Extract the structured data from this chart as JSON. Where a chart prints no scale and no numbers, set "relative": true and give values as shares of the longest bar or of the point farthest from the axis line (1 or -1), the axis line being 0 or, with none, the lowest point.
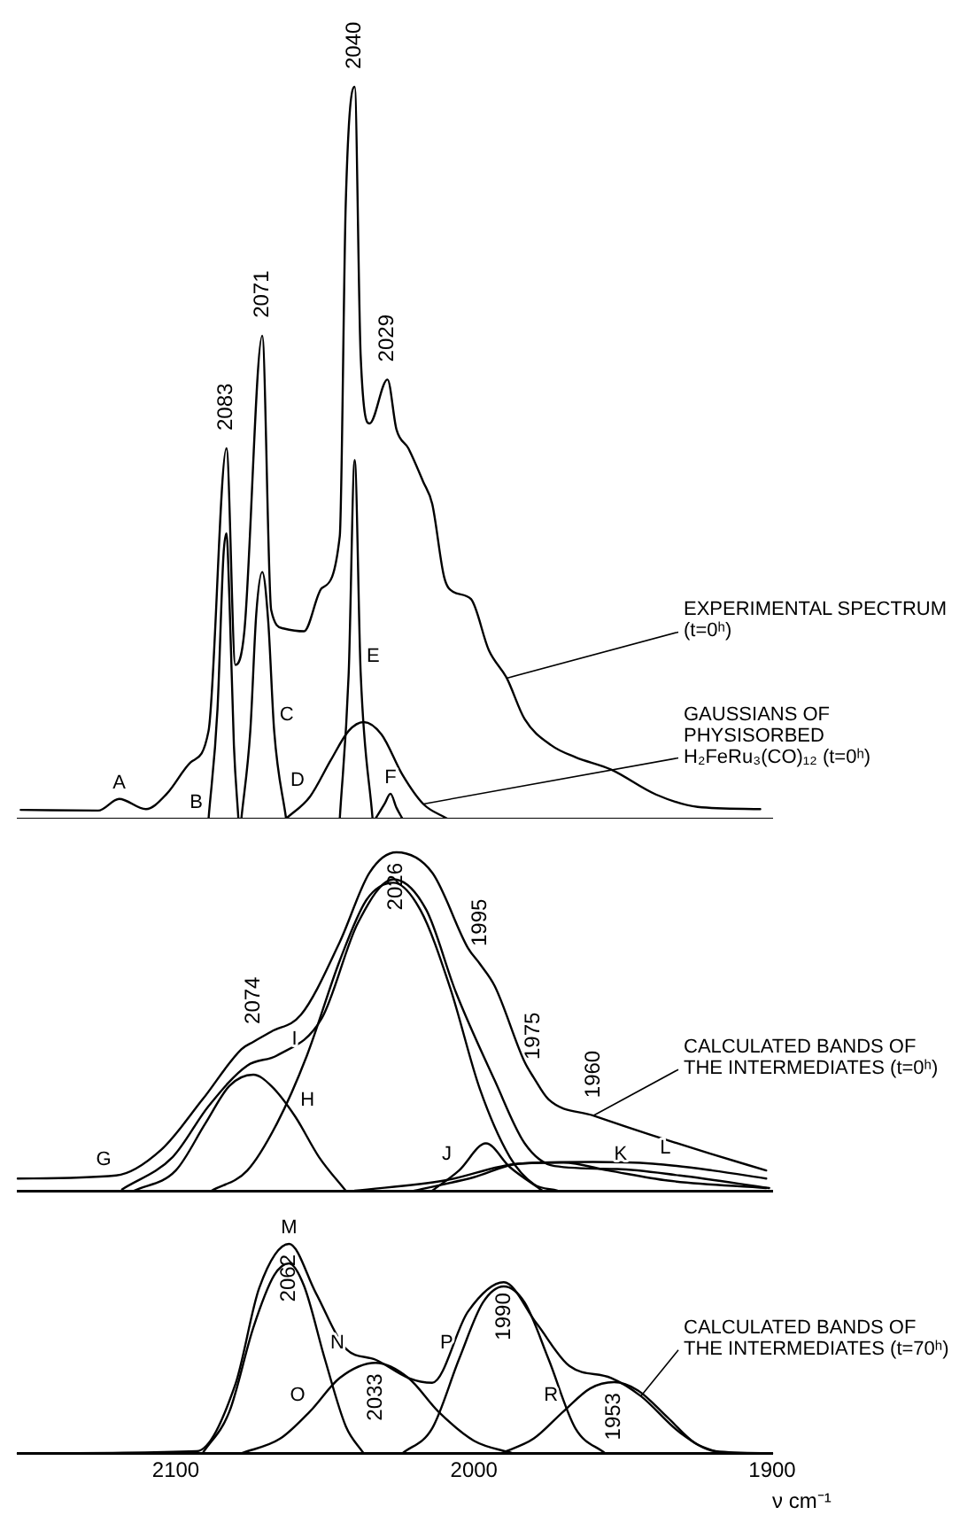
{
  "chart_data": [
    {
      "type": "line",
      "relative": true,
      "xlim": [
        2153,
        1900
      ],
      "tick_labels": false,
      "series": [
        {
          "color": "#000000",
          "x": [
            2152,
            2126,
            2119,
            2110,
            2103,
            2095,
            2089,
            2083,
            2080,
            2077,
            2071,
            2068,
            2064,
            2057,
            2051,
            2045,
            2043,
            2040,
            2038,
            2035,
            2029,
            2026,
            2022,
            2017,
            2014,
            2010,
            2007,
            2001,
            1995,
            1989,
            1983,
            1974,
            1966,
            1954,
            1939,
            1925,
            1904
          ],
          "values": [
            0.012,
            0.011,
            0.027,
            0.013,
            0.034,
            0.077,
            0.12,
            0.506,
            0.21,
            0.256,
            0.66,
            0.285,
            0.26,
            0.256,
            0.315,
            0.386,
            0.84,
            1,
            0.633,
            0.54,
            0.6,
            0.532,
            0.506,
            0.46,
            0.43,
            0.33,
            0.31,
            0.3,
            0.23,
            0.192,
            0.136,
            0.1,
            0.084,
            0.067,
            0.033,
            0.016,
            0.013
          ]
        },
        {
          "color": "#000000",
          "x": [
            2089,
            2086,
            2084,
            2083,
            2082,
            2080.5,
            2079
          ],
          "values": [
            0,
            0.15,
            0.36,
            0.39,
            0.3,
            0.1,
            0
          ]
        },
        {
          "color": "#000000",
          "x": [
            2078,
            2075,
            2073,
            2071,
            2069,
            2067,
            2063
          ],
          "values": [
            0,
            0.12,
            0.28,
            0.337,
            0.27,
            0.12,
            0
          ]
        },
        {
          "color": "#000000",
          "x": [
            2045,
            2042,
            2040,
            2038,
            2034
          ],
          "values": [
            0,
            0.2,
            0.49,
            0.2,
            0
          ]
        },
        {
          "color": "#000000",
          "x": [
            2063,
            2055,
            2048,
            2042,
            2037,
            2031,
            2024,
            2017,
            2009
          ],
          "values": [
            0,
            0.03,
            0.08,
            0.12,
            0.132,
            0.115,
            0.06,
            0.02,
            0
          ]
        },
        {
          "color": "#000000",
          "x": [
            2033,
            2030,
            2028,
            2026,
            2024
          ],
          "values": [
            0,
            0.02,
            0.034,
            0.015,
            0
          ]
        }
      ],
      "annotations": [
        {
          "text": "2083",
          "x": 2083,
          "y": 0.506
        },
        {
          "text": "2071",
          "x": 2071,
          "y": 0.66
        },
        {
          "text": "2040",
          "x": 2040,
          "y": 1
        },
        {
          "text": "2029",
          "x": 2029,
          "y": 0.6
        },
        {
          "text": "A",
          "x": 2119,
          "y": 0.027
        },
        {
          "text": "B",
          "x": 2089,
          "y": 0
        },
        {
          "text": "C",
          "x": 2067,
          "y": 0.12
        },
        {
          "text": "D",
          "x": 2055,
          "y": 0.03
        },
        {
          "text": "E",
          "x": 2038,
          "y": 0.2
        },
        {
          "text": "F",
          "x": 2028,
          "y": 0.034
        },
        {
          "text": "EXPERIMENTAL SPECTRUM (t=0ʰ)",
          "x": 1989,
          "y": 0.192
        },
        {
          "text": "GAUSSIANS OF PHYSISORBED H₂FeRu₃(CO)₁₂ (t=0ʰ)",
          "x": 2017,
          "y": 0.02
        }
      ]
    },
    {
      "type": "line",
      "relative": true,
      "xlim": [
        2153,
        1900
      ],
      "tick_labels": false,
      "series": [
        {
          "color": "#000000",
          "x": [
            2153,
            2120,
            2105,
            2091,
            2078,
            2074,
            2068,
            2058,
            2045,
            2035,
            2026,
            2014,
            2002,
            1998,
            1993,
            1983,
            1980,
            1975,
            1960,
            1941,
            1921,
            1902
          ],
          "values": [
            0.036,
            0.045,
            0.12,
            0.27,
            0.418,
            0.44,
            0.47,
            0.52,
            0.735,
            0.94,
            1,
            0.94,
            0.717,
            0.67,
            0.604,
            0.38,
            0.335,
            0.27,
            0.222,
            0.166,
            0.11,
            0.06
          ]
        },
        {
          "color": "#000000",
          "x": [
            2118,
            2101,
            2089,
            2076,
            2066,
            2051,
            2039,
            2027,
            2016,
            2006,
            1993,
            1983,
            1973,
            1952,
            1931,
            1901
          ],
          "values": [
            0.004,
            0.1,
            0.25,
            0.37,
            0.4,
            0.51,
            0.79,
            0.92,
            0.83,
            0.585,
            0.325,
            0.14,
            0.073,
            0.064,
            0.045,
            0.008
          ]
        },
        {
          "color": "#000000",
          "x": [
            2114,
            2100,
            2090,
            2082,
            2074,
            2068,
            2060,
            2052,
            2043
          ],
          "values": [
            0,
            0.06,
            0.2,
            0.31,
            0.343,
            0.31,
            0.22,
            0.1,
            0
          ]
        },
        {
          "color": "#000000",
          "x": [
            2088,
            2076,
            2066,
            2056,
            2045,
            2036,
            2027,
            2018,
            2008,
            1998,
            1988,
            1980,
            1972
          ],
          "values": [
            0,
            0.06,
            0.2,
            0.4,
            0.68,
            0.86,
            0.91,
            0.83,
            0.6,
            0.3,
            0.1,
            0.02,
            0
          ]
        },
        {
          "color": "#000000",
          "x": [
            2014,
            2005,
            1996,
            1988,
            1977
          ],
          "values": [
            0,
            0.06,
            0.14,
            0.07,
            0
          ]
        },
        {
          "color": "#000000",
          "x": [
            2040,
            2010,
            1985,
            1970,
            1955,
            1935,
            1902
          ],
          "values": [
            0,
            0.03,
            0.08,
            0.083,
            0.06,
            0.03,
            0.008
          ]
        },
        {
          "color": "#000000",
          "x": [
            2020,
            2000,
            1985,
            1960,
            1940,
            1920,
            1902
          ],
          "values": [
            0,
            0.04,
            0.08,
            0.085,
            0.08,
            0.06,
            0.036
          ]
        }
      ],
      "annotations": [
        {
          "text": "2074",
          "x": 2074,
          "y": 0.44
        },
        {
          "text": "2026",
          "x": 2026,
          "y": 1
        },
        {
          "text": "1995",
          "x": 1998,
          "y": 0.67
        },
        {
          "text": "1975",
          "x": 1980,
          "y": 0.335
        },
        {
          "text": "1960",
          "x": 1960,
          "y": 0.222
        },
        {
          "text": "G",
          "x": 2120,
          "y": 0.045
        },
        {
          "text": "H",
          "x": 2060,
          "y": 0.22
        },
        {
          "text": "I",
          "x": 2056,
          "y": 0.4
        },
        {
          "text": "J",
          "x": 2005,
          "y": 0.06
        },
        {
          "text": "K",
          "x": 1955,
          "y": 0.06
        },
        {
          "text": "L",
          "x": 1940,
          "y": 0.08
        },
        {
          "text": "CALCULATED BANDS OF THE INTERMEDIATES (t=0ʰ)",
          "x": 1960,
          "y": 0.222
        }
      ]
    },
    {
      "type": "line",
      "relative": true,
      "xlim": [
        2153,
        1900
      ],
      "xticks": [
        2100,
        2000,
        1900
      ],
      "tick_labels": "x",
      "xlabel": "ν cm⁻¹",
      "series": [
        {
          "color": "#000000",
          "x": [
            2153,
            2093,
            2080,
            2072,
            2062,
            2053,
            2043,
            2033,
            2022,
            2014,
            2002,
            1990,
            1979,
            1968,
            1954,
            1944,
            1931,
            1919,
            1900
          ],
          "values": [
            0,
            0.01,
            0.33,
            0.79,
            1,
            0.765,
            0.5,
            0.447,
            0.36,
            0.337,
            0.677,
            0.817,
            0.62,
            0.417,
            0.36,
            0.273,
            0.1,
            0.01,
            0
          ]
        },
        {
          "color": "#000000",
          "x": [
            2091,
            2082,
            2074,
            2067,
            2062,
            2057,
            2050,
            2043,
            2037
          ],
          "values": [
            0,
            0.2,
            0.6,
            0.85,
            0.907,
            0.8,
            0.45,
            0.13,
            0
          ]
        },
        {
          "color": "#000000",
          "x": [
            2078,
            2065,
            2055,
            2045,
            2033,
            2022,
            2012,
            2000,
            1987
          ],
          "values": [
            0,
            0.07,
            0.2,
            0.36,
            0.432,
            0.36,
            0.2,
            0.06,
            0
          ]
        },
        {
          "color": "#000000",
          "x": [
            2024,
            2014,
            2005,
            1997,
            1990,
            1983,
            1975,
            1966,
            1956
          ],
          "values": [
            0,
            0.12,
            0.45,
            0.72,
            0.797,
            0.72,
            0.45,
            0.12,
            0
          ]
        },
        {
          "color": "#000000",
          "x": [
            1991,
            1980,
            1970,
            1961,
            1953,
            1945,
            1935,
            1926,
            1917
          ],
          "values": [
            0,
            0.07,
            0.2,
            0.31,
            0.34,
            0.3,
            0.17,
            0.05,
            0
          ]
        }
      ],
      "annotations": [
        {
          "text": "2062",
          "x": 2062,
          "y": 1
        },
        {
          "text": "2033",
          "x": 2033,
          "y": 0.432
        },
        {
          "text": "1990",
          "x": 1990,
          "y": 0.817
        },
        {
          "text": "1953",
          "x": 1953,
          "y": 0.34
        },
        {
          "text": "M",
          "x": 2062,
          "y": 1
        },
        {
          "text": "N",
          "x": 2050,
          "y": 0.45
        },
        {
          "text": "O",
          "x": 2055,
          "y": 0.2
        },
        {
          "text": "P",
          "x": 2005,
          "y": 0.45
        },
        {
          "text": "R",
          "x": 1970,
          "y": 0.2
        },
        {
          "text": "CALCULATED BANDS OF THE INTERMEDIATES (t=70ʰ)",
          "x": 1944,
          "y": 0.273
        }
      ]
    }
  ]
}
